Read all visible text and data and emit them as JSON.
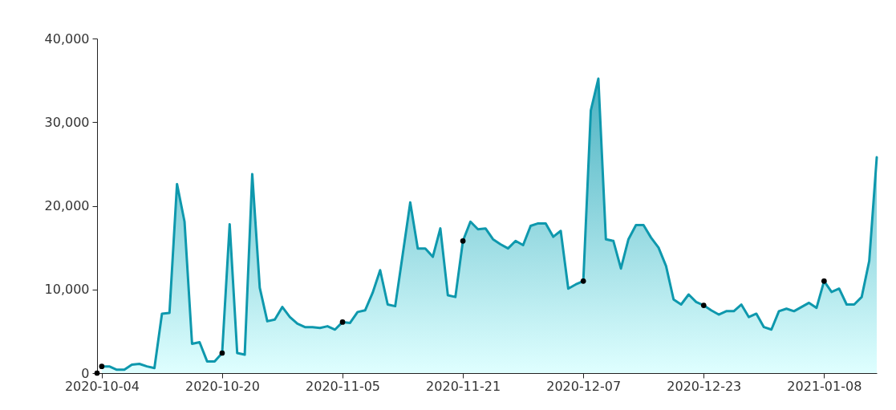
{
  "chart_data": {
    "type": "area",
    "xlim": [
      "2020-10-03T09:00",
      "2021-01-15"
    ],
    "xticks": [
      "2020-10-04",
      "2020-10-20",
      "2020-11-05",
      "2020-11-21",
      "2020-12-07",
      "2020-12-23",
      "2021-01-08"
    ],
    "ylim": [
      0,
      40000
    ],
    "yticks": [
      0,
      {
        "value": 10000,
        "label": "10,000"
      },
      {
        "value": 20000,
        "label": "20,000"
      },
      {
        "value": 30000,
        "label": "30,000"
      },
      {
        "value": 40000,
        "label": "40,000"
      }
    ],
    "grid": false,
    "series": [
      {
        "color": "#0e98ad",
        "x": [
          "2020-10-04",
          "2020-10-05",
          "2020-10-06",
          "2020-10-07",
          "2020-10-08",
          "2020-10-09",
          "2020-10-10",
          "2020-10-11",
          "2020-10-12",
          "2020-10-13",
          "2020-10-14",
          "2020-10-15",
          "2020-10-16",
          "2020-10-17",
          "2020-10-18",
          "2020-10-19",
          "2020-10-20",
          "2020-10-21",
          "2020-10-22",
          "2020-10-23",
          "2020-10-24",
          "2020-10-25",
          "2020-10-26",
          "2020-10-27",
          "2020-10-28",
          "2020-10-29",
          "2020-10-30",
          "2020-10-31",
          "2020-11-01",
          "2020-11-02",
          "2020-11-03",
          "2020-11-04",
          "2020-11-05",
          "2020-11-06",
          "2020-11-07",
          "2020-11-08",
          "2020-11-09",
          "2020-11-10",
          "2020-11-11",
          "2020-11-12",
          "2020-11-13",
          "2020-11-14",
          "2020-11-15",
          "2020-11-16",
          "2020-11-17",
          "2020-11-18",
          "2020-11-19",
          "2020-11-20",
          "2020-11-21",
          "2020-11-22",
          "2020-11-23",
          "2020-11-24",
          "2020-11-25",
          "2020-11-26",
          "2020-11-27",
          "2020-11-28",
          "2020-11-29",
          "2020-11-30",
          "2020-12-01",
          "2020-12-02",
          "2020-12-03",
          "2020-12-04",
          "2020-12-05",
          "2020-12-06",
          "2020-12-07",
          "2020-12-08",
          "2020-12-09",
          "2020-12-10",
          "2020-12-11",
          "2020-12-12",
          "2020-12-13",
          "2020-12-14",
          "2020-12-15",
          "2020-12-16",
          "2020-12-17",
          "2020-12-18",
          "2020-12-19",
          "2020-12-20",
          "2020-12-21",
          "2020-12-22",
          "2020-12-23",
          "2020-12-24",
          "2020-12-25",
          "2020-12-26",
          "2020-12-27",
          "2020-12-28",
          "2020-12-29",
          "2020-12-30",
          "2020-12-31",
          "2021-01-01",
          "2021-01-02",
          "2021-01-03",
          "2021-01-04",
          "2021-01-05",
          "2021-01-06",
          "2021-01-07",
          "2021-01-08",
          "2021-01-09",
          "2021-01-10",
          "2021-01-11",
          "2021-01-12",
          "2021-01-13",
          "2021-01-14",
          "2021-01-15"
        ],
        "values": [
          800,
          800,
          400,
          400,
          1000,
          1100,
          800,
          600,
          7100,
          7200,
          22600,
          18100,
          3500,
          3700,
          1400,
          1400,
          2400,
          17800,
          2400,
          2200,
          23800,
          10200,
          6200,
          6400,
          7900,
          6700,
          5900,
          5500,
          5500,
          5400,
          5600,
          5200,
          6100,
          6000,
          7300,
          7500,
          9600,
          12300,
          8200,
          8000,
          14200,
          20400,
          14900,
          14900,
          13900,
          17300,
          9300,
          9100,
          15800,
          18100,
          17200,
          17300,
          16000,
          15400,
          14900,
          15800,
          15300,
          17600,
          17900,
          17900,
          16300,
          17000,
          10100,
          10600,
          11000,
          31400,
          35200,
          16000,
          15800,
          12500,
          16000,
          17700,
          17700,
          16200,
          15000,
          12800,
          8800,
          8200,
          9400,
          8500,
          8100,
          7500,
          7000,
          7400,
          7400,
          8200,
          6700,
          7100,
          5500,
          5200,
          7400,
          7700,
          7400,
          7900,
          8400,
          7800,
          11000,
          9700,
          10100,
          8200,
          8200,
          9100,
          13400,
          25800
        ]
      },
      {
        "type": "scatter",
        "color": "#000000",
        "x": [
          "2020-10-03T09:00",
          "2020-10-04",
          "2020-10-20",
          "2020-11-05",
          "2020-11-21",
          "2020-12-07",
          "2020-12-23",
          "2021-01-08"
        ],
        "values": [
          0,
          800,
          2400,
          6100,
          15800,
          11000,
          8100,
          11000
        ]
      }
    ]
  }
}
